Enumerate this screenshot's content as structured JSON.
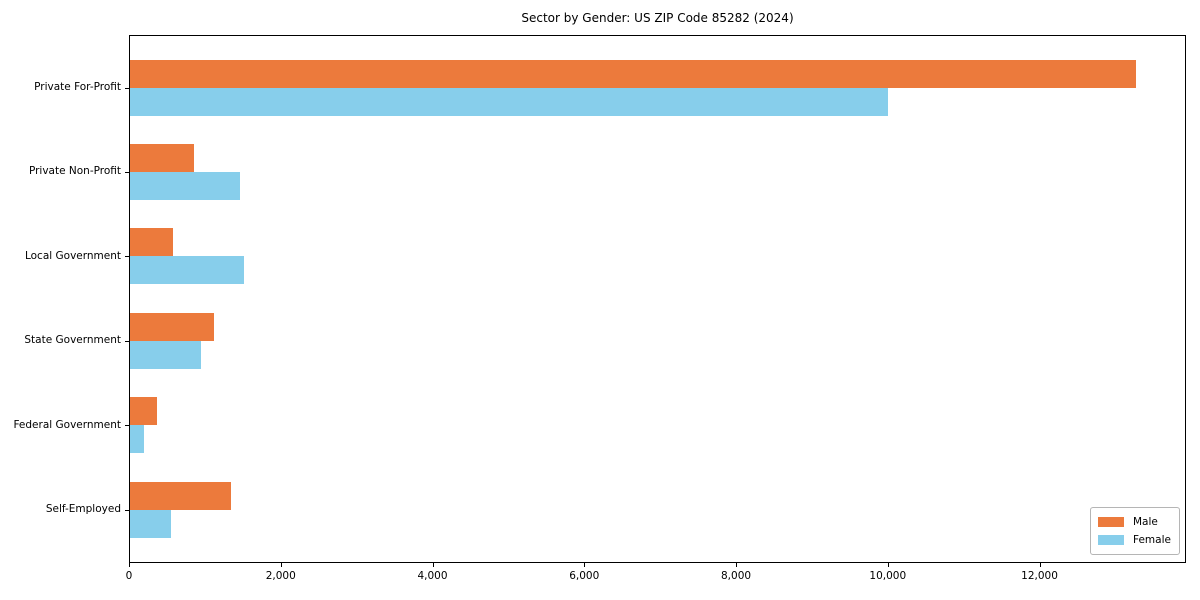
{
  "title": "Sector by Gender: US ZIP Code 85282 (2024)",
  "chart_data": {
    "type": "bar",
    "orientation": "horizontal",
    "title": "Sector by Gender: US ZIP Code 85282 (2024)",
    "xlabel": "",
    "ylabel": "",
    "categories": [
      "Private For-Profit",
      "Private Non-Profit",
      "Local Government",
      "State Government",
      "Federal Government",
      "Self-Employed"
    ],
    "series": [
      {
        "name": "Male",
        "color": "#EC7A3C",
        "values": [
          13270,
          860,
          585,
          1120,
          365,
          1340
        ]
      },
      {
        "name": "Female",
        "color": "#87CEEB",
        "values": [
          10000,
          1460,
          1520,
          945,
          200,
          560
        ]
      }
    ],
    "xlim": [
      0,
      13930
    ],
    "x_ticks": [
      {
        "value": 0,
        "label": "0"
      },
      {
        "value": 2000,
        "label": "2,000"
      },
      {
        "value": 4000,
        "label": "4,000"
      },
      {
        "value": 6000,
        "label": "6,000"
      },
      {
        "value": 8000,
        "label": "8,000"
      },
      {
        "value": 10000,
        "label": "10,000"
      },
      {
        "value": 12000,
        "label": "12,000"
      }
    ],
    "grid": false,
    "legend_position": "lower right",
    "background": "#ffffff",
    "spine_color": "#000000"
  }
}
